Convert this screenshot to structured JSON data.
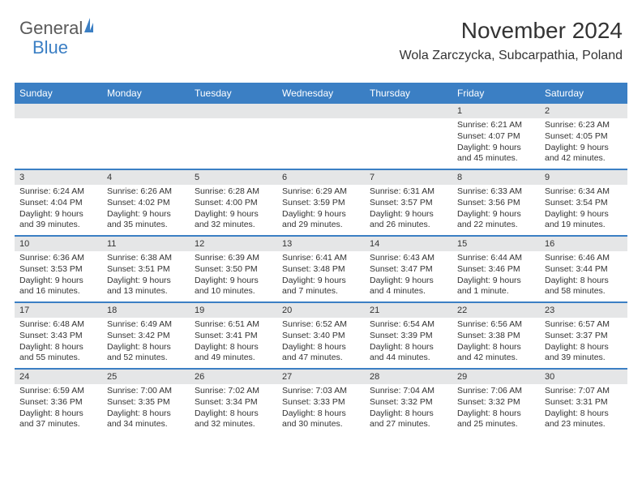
{
  "logo": {
    "part1": "General",
    "part2": "Blue"
  },
  "header": {
    "title": "November 2024",
    "location": "Wola Zarczycka, Subcarpathia, Poland"
  },
  "colors": {
    "accent": "#3b7fc4",
    "daynum_bg": "#e5e6e7",
    "text": "#333333",
    "background": "#ffffff"
  },
  "calendar": {
    "day_names": [
      "Sunday",
      "Monday",
      "Tuesday",
      "Wednesday",
      "Thursday",
      "Friday",
      "Saturday"
    ],
    "weeks": [
      [
        null,
        null,
        null,
        null,
        null,
        {
          "n": "1",
          "sunrise": "6:21 AM",
          "sunset": "4:07 PM",
          "daylight": "9 hours and 45 minutes."
        },
        {
          "n": "2",
          "sunrise": "6:23 AM",
          "sunset": "4:05 PM",
          "daylight": "9 hours and 42 minutes."
        }
      ],
      [
        {
          "n": "3",
          "sunrise": "6:24 AM",
          "sunset": "4:04 PM",
          "daylight": "9 hours and 39 minutes."
        },
        {
          "n": "4",
          "sunrise": "6:26 AM",
          "sunset": "4:02 PM",
          "daylight": "9 hours and 35 minutes."
        },
        {
          "n": "5",
          "sunrise": "6:28 AM",
          "sunset": "4:00 PM",
          "daylight": "9 hours and 32 minutes."
        },
        {
          "n": "6",
          "sunrise": "6:29 AM",
          "sunset": "3:59 PM",
          "daylight": "9 hours and 29 minutes."
        },
        {
          "n": "7",
          "sunrise": "6:31 AM",
          "sunset": "3:57 PM",
          "daylight": "9 hours and 26 minutes."
        },
        {
          "n": "8",
          "sunrise": "6:33 AM",
          "sunset": "3:56 PM",
          "daylight": "9 hours and 22 minutes."
        },
        {
          "n": "9",
          "sunrise": "6:34 AM",
          "sunset": "3:54 PM",
          "daylight": "9 hours and 19 minutes."
        }
      ],
      [
        {
          "n": "10",
          "sunrise": "6:36 AM",
          "sunset": "3:53 PM",
          "daylight": "9 hours and 16 minutes."
        },
        {
          "n": "11",
          "sunrise": "6:38 AM",
          "sunset": "3:51 PM",
          "daylight": "9 hours and 13 minutes."
        },
        {
          "n": "12",
          "sunrise": "6:39 AM",
          "sunset": "3:50 PM",
          "daylight": "9 hours and 10 minutes."
        },
        {
          "n": "13",
          "sunrise": "6:41 AM",
          "sunset": "3:48 PM",
          "daylight": "9 hours and 7 minutes."
        },
        {
          "n": "14",
          "sunrise": "6:43 AM",
          "sunset": "3:47 PM",
          "daylight": "9 hours and 4 minutes."
        },
        {
          "n": "15",
          "sunrise": "6:44 AM",
          "sunset": "3:46 PM",
          "daylight": "9 hours and 1 minute."
        },
        {
          "n": "16",
          "sunrise": "6:46 AM",
          "sunset": "3:44 PM",
          "daylight": "8 hours and 58 minutes."
        }
      ],
      [
        {
          "n": "17",
          "sunrise": "6:48 AM",
          "sunset": "3:43 PM",
          "daylight": "8 hours and 55 minutes."
        },
        {
          "n": "18",
          "sunrise": "6:49 AM",
          "sunset": "3:42 PM",
          "daylight": "8 hours and 52 minutes."
        },
        {
          "n": "19",
          "sunrise": "6:51 AM",
          "sunset": "3:41 PM",
          "daylight": "8 hours and 49 minutes."
        },
        {
          "n": "20",
          "sunrise": "6:52 AM",
          "sunset": "3:40 PM",
          "daylight": "8 hours and 47 minutes."
        },
        {
          "n": "21",
          "sunrise": "6:54 AM",
          "sunset": "3:39 PM",
          "daylight": "8 hours and 44 minutes."
        },
        {
          "n": "22",
          "sunrise": "6:56 AM",
          "sunset": "3:38 PM",
          "daylight": "8 hours and 42 minutes."
        },
        {
          "n": "23",
          "sunrise": "6:57 AM",
          "sunset": "3:37 PM",
          "daylight": "8 hours and 39 minutes."
        }
      ],
      [
        {
          "n": "24",
          "sunrise": "6:59 AM",
          "sunset": "3:36 PM",
          "daylight": "8 hours and 37 minutes."
        },
        {
          "n": "25",
          "sunrise": "7:00 AM",
          "sunset": "3:35 PM",
          "daylight": "8 hours and 34 minutes."
        },
        {
          "n": "26",
          "sunrise": "7:02 AM",
          "sunset": "3:34 PM",
          "daylight": "8 hours and 32 minutes."
        },
        {
          "n": "27",
          "sunrise": "7:03 AM",
          "sunset": "3:33 PM",
          "daylight": "8 hours and 30 minutes."
        },
        {
          "n": "28",
          "sunrise": "7:04 AM",
          "sunset": "3:32 PM",
          "daylight": "8 hours and 27 minutes."
        },
        {
          "n": "29",
          "sunrise": "7:06 AM",
          "sunset": "3:32 PM",
          "daylight": "8 hours and 25 minutes."
        },
        {
          "n": "30",
          "sunrise": "7:07 AM",
          "sunset": "3:31 PM",
          "daylight": "8 hours and 23 minutes."
        }
      ]
    ]
  },
  "labels": {
    "sunrise_prefix": "Sunrise: ",
    "sunset_prefix": "Sunset: ",
    "daylight_prefix": "Daylight: "
  }
}
